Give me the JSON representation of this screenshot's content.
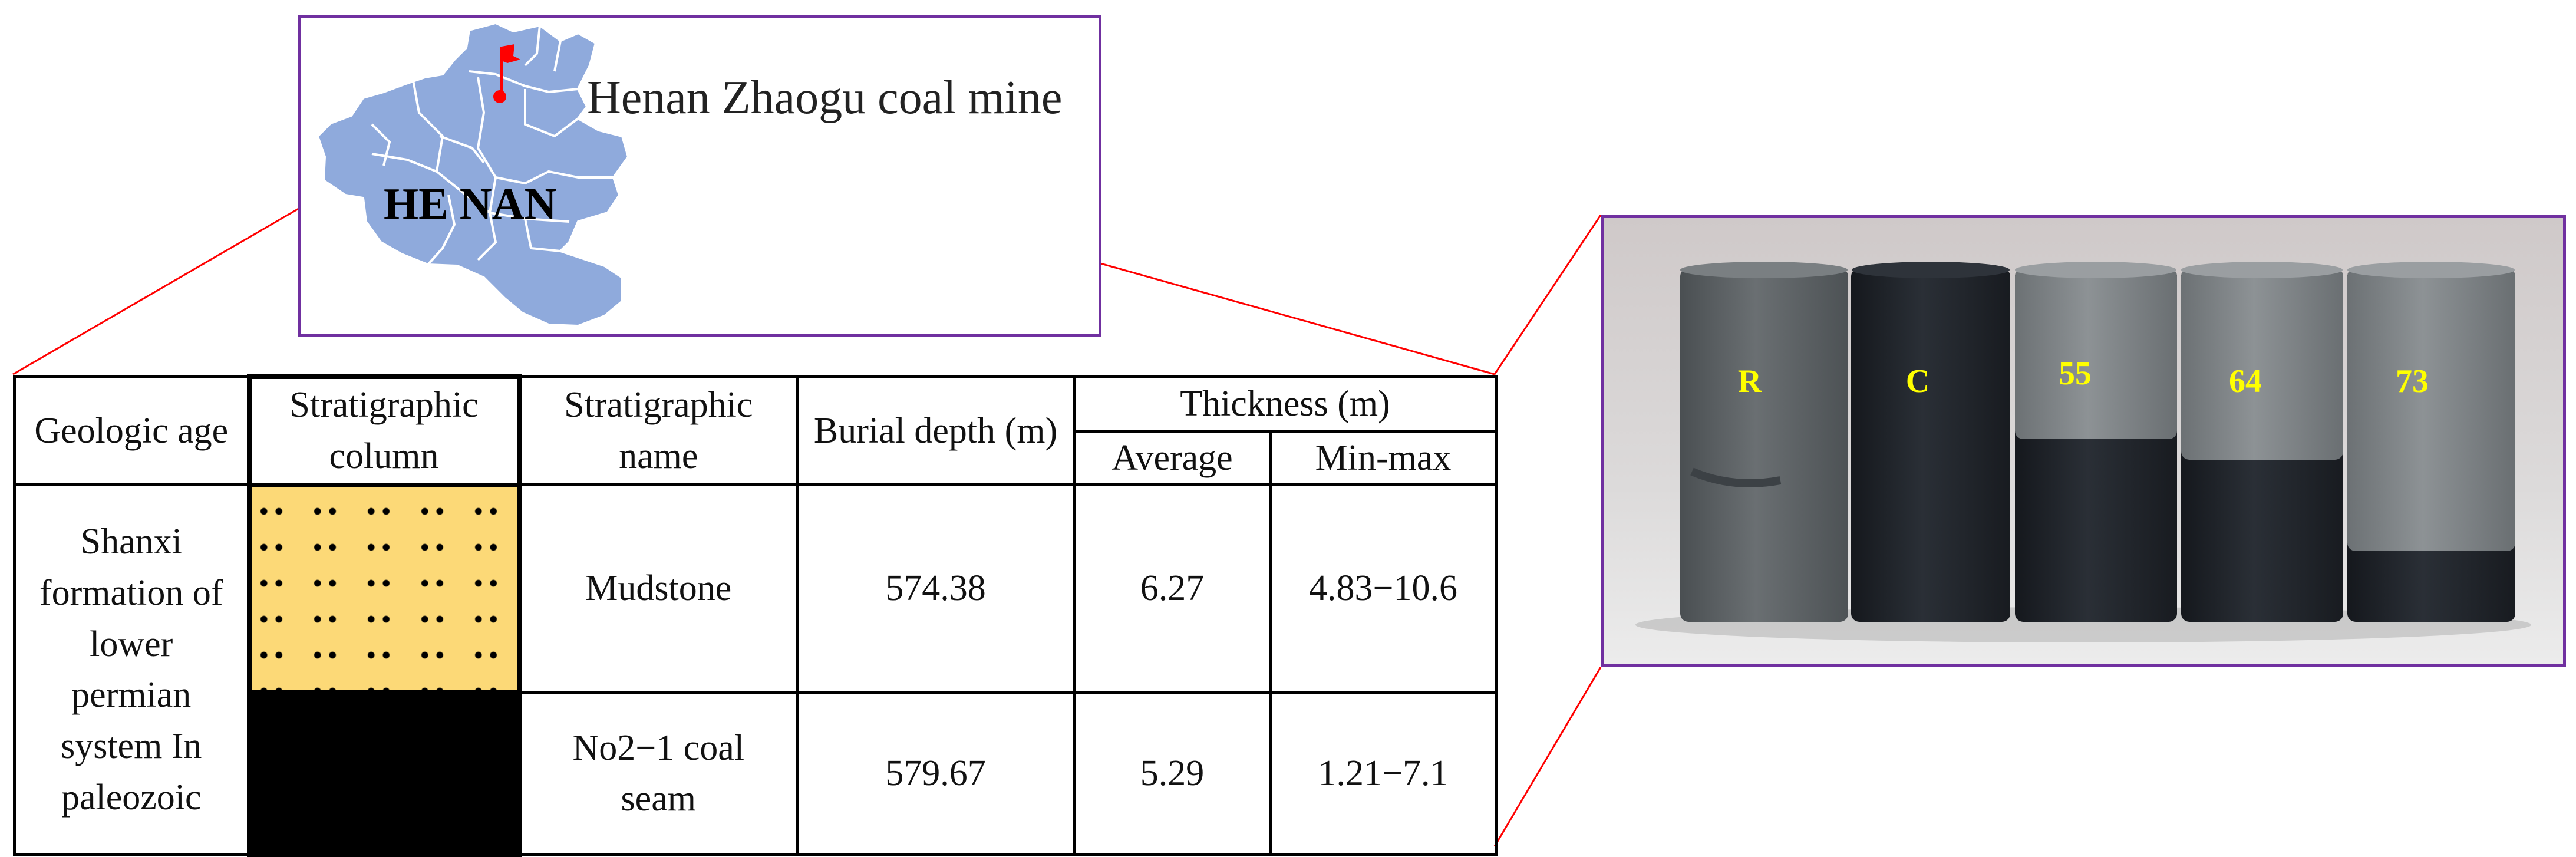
{
  "map": {
    "mine_label": "Henan Zhaogu coal mine",
    "province_label": "HE NAN",
    "border_color": "#7030a0",
    "province_color": "#8faadc",
    "marker_color": "#ff0000"
  },
  "connector_color": "#ff0000",
  "table": {
    "headers": {
      "geologic_age": "Geologic age",
      "stratigraphic_column": "Stratigraphic column",
      "stratigraphic_name": "Stratigraphic name",
      "burial_depth": "Burial depth (m)",
      "thickness": "Thickness (m)",
      "average": "Average",
      "min_max": "Min-max"
    },
    "geologic_age_value": "Shanxi formation of lower permian system In paleozoic",
    "rows": [
      {
        "name": "Mudstone",
        "burial_depth": "574.38",
        "average": "6.27",
        "min_max": "4.83−10.6",
        "column_fill": "#fcd977"
      },
      {
        "name": "No2−1 coal seam",
        "burial_depth": "579.67",
        "average": "5.29",
        "min_max": "1.21−7.1",
        "column_fill": "#000000"
      }
    ]
  },
  "photo": {
    "border_color": "#7030a0",
    "label_color": "#ffff00",
    "cores": [
      {
        "label": "R"
      },
      {
        "label": "C"
      },
      {
        "label": "55"
      },
      {
        "label": "64"
      },
      {
        "label": "73"
      }
    ]
  }
}
